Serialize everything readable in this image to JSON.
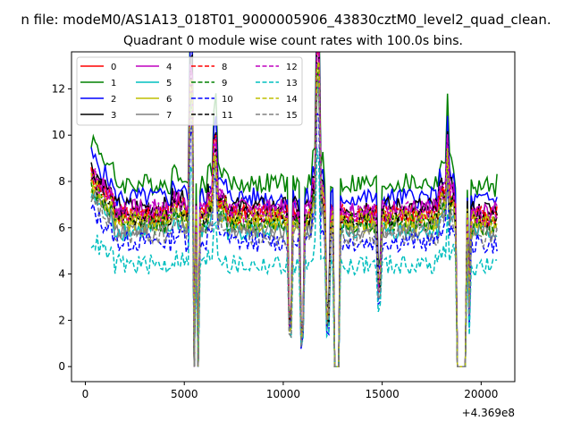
{
  "chart_data": {
    "type": "line",
    "suptitle": "n file: modeM0/AS1A13_018T01_9000005906_43830cztM0_level2_quad_clean.",
    "title": "Quadrant 0 module wise count rates with 100.0s bins.",
    "xlabel": "",
    "ylabel": "",
    "x_offset_label": "+4.369e8",
    "xlim": [
      -700,
      21700
    ],
    "ylim": [
      -0.65,
      13.6
    ],
    "xticks": [
      0,
      5000,
      10000,
      15000,
      20000
    ],
    "xtick_labels": [
      "0",
      "5000",
      "10000",
      "15000",
      "20000"
    ],
    "yticks": [
      0,
      2,
      4,
      6,
      8,
      10,
      12
    ],
    "ytick_labels": [
      "0",
      "2",
      "4",
      "6",
      "8",
      "10",
      "12"
    ],
    "grid": false,
    "legend_position": "upper-left",
    "legend_columns": 4,
    "x_range": [
      300,
      20800
    ],
    "bin_seconds": 100,
    "profile_shape": {
      "gaps": [
        [
          5420,
          5540
        ],
        [
          5660,
          5760
        ],
        [
          12600,
          12850
        ],
        [
          18800,
          19250
        ]
      ],
      "dips": [
        [
          10300,
          10450,
          0.3
        ],
        [
          10900,
          11000,
          0.22
        ],
        [
          12200,
          12300,
          0.33
        ],
        [
          14800,
          14900,
          0.55
        ],
        [
          19350,
          19450,
          0.38
        ]
      ],
      "peaks": [
        [
          5300,
          5400,
          1.9
        ],
        [
          11700,
          11850,
          1.8
        ],
        [
          6450,
          6600,
          1.35
        ],
        [
          18250,
          18350,
          1.3
        ]
      ]
    },
    "series": [
      {
        "name": "0",
        "color": "#ff0000",
        "dash": "solid",
        "base": 6.6
      },
      {
        "name": "1",
        "color": "#008000",
        "dash": "solid",
        "base": 7.9
      },
      {
        "name": "2",
        "color": "#0000ff",
        "dash": "solid",
        "base": 7.3
      },
      {
        "name": "3",
        "color": "#000000",
        "dash": "solid",
        "base": 6.9
      },
      {
        "name": "4",
        "color": "#bf00bf",
        "dash": "solid",
        "base": 6.8
      },
      {
        "name": "5",
        "color": "#00bfbf",
        "dash": "solid",
        "base": 5.9
      },
      {
        "name": "6",
        "color": "#bfbf00",
        "dash": "solid",
        "base": 6.2
      },
      {
        "name": "7",
        "color": "#808080",
        "dash": "solid",
        "base": 6.0
      },
      {
        "name": "8",
        "color": "#ff0000",
        "dash": "dashed",
        "base": 6.6
      },
      {
        "name": "9",
        "color": "#008000",
        "dash": "dashed",
        "base": 6.2
      },
      {
        "name": "10",
        "color": "#0000ff",
        "dash": "dashed",
        "base": 5.4
      },
      {
        "name": "11",
        "color": "#000000",
        "dash": "dashed",
        "base": 6.5
      },
      {
        "name": "12",
        "color": "#bf00bf",
        "dash": "dashed",
        "base": 6.7
      },
      {
        "name": "13",
        "color": "#00bfbf",
        "dash": "dashed",
        "base": 4.4
      },
      {
        "name": "14",
        "color": "#bfbf00",
        "dash": "dashed",
        "base": 6.4
      },
      {
        "name": "15",
        "color": "#808080",
        "dash": "dashed",
        "base": 5.7
      }
    ]
  }
}
